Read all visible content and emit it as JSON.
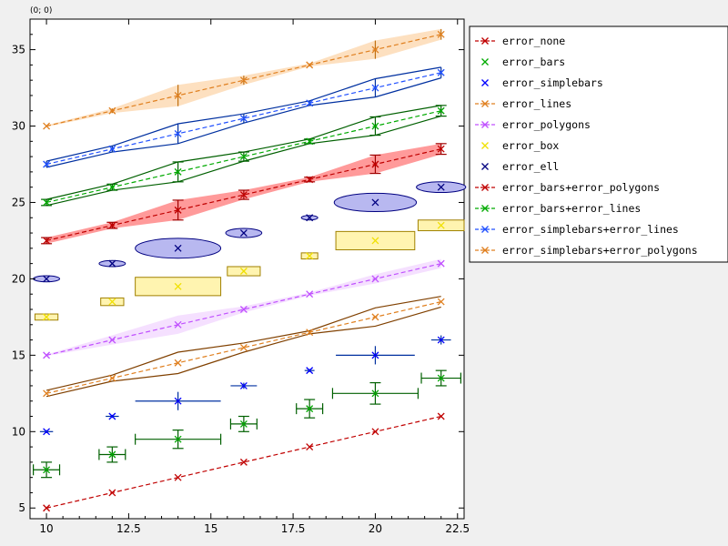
{
  "coordinate_readout": "(0; 0)",
  "chart_data": {
    "type": "line",
    "title": "",
    "xlabel": "",
    "ylabel": "",
    "xlim": [
      9.5,
      22.7
    ],
    "ylim": [
      4.3,
      37
    ],
    "grid": false,
    "legend_position": "top-right",
    "xticks": [
      10,
      12.5,
      15,
      17.5,
      20,
      22.5
    ],
    "xtick_labels": [
      "10",
      "12.5",
      "15",
      "17.5",
      "20",
      "22.5"
    ],
    "yticks": [
      5,
      10,
      15,
      20,
      25,
      30,
      35
    ],
    "ytick_labels": [
      "5",
      "10",
      "15",
      "20",
      "25",
      "30",
      "35"
    ],
    "x": [
      10,
      12,
      14,
      16,
      18,
      20,
      22
    ],
    "series": [
      {
        "name": "error_none",
        "color": "#c00000",
        "line": "dashed",
        "values": [
          5,
          6,
          7,
          8,
          9,
          10,
          11
        ],
        "error_style": "none"
      },
      {
        "name": "error_bars",
        "color": "#00aa00",
        "line": "none",
        "values": [
          7.5,
          8.5,
          9.5,
          10.5,
          11.5,
          12.5,
          13.5
        ],
        "xerr": [
          0.4,
          0.4,
          1.3,
          0.4,
          0.4,
          1.3,
          0.6
        ],
        "yerr": [
          0.5,
          0.5,
          0.6,
          0.5,
          0.6,
          0.7,
          0.5
        ],
        "error_style": "bars",
        "error_color": "#006000"
      },
      {
        "name": "error_simplebars",
        "color": "#0000ff",
        "line": "none",
        "values": [
          10,
          11,
          12,
          13,
          14,
          15,
          16
        ],
        "xerr": [
          0.2,
          0.2,
          1.3,
          0.4,
          0.15,
          1.2,
          0.3
        ],
        "yerr": [
          0.1,
          0.1,
          0.6,
          0.2,
          0.1,
          0.6,
          0.3
        ],
        "error_style": "simplebars",
        "error_color": "#0030a0"
      },
      {
        "name": "error_lines",
        "color": "#e08020",
        "line": "dashed",
        "values": [
          12.5,
          13.5,
          14.5,
          15.5,
          16.5,
          17.5,
          18.5
        ],
        "yerr": [
          0.2,
          0.2,
          0.7,
          0.3,
          0.1,
          0.6,
          0.35
        ],
        "error_style": "lines",
        "error_color": "#804000"
      },
      {
        "name": "error_polygons",
        "color": "#c050ff",
        "line": "dashed",
        "values": [
          15,
          16,
          17,
          18,
          19,
          20,
          21
        ],
        "yerr": [
          0.05,
          0.3,
          0.6,
          0.2,
          0.1,
          0.3,
          0.3
        ],
        "error_style": "polygons",
        "error_fill": "#f5e0ff"
      },
      {
        "name": "error_box",
        "color": "#f0e000",
        "line": "none",
        "values": [
          17.5,
          18.5,
          19.5,
          20.5,
          21.5,
          22.5,
          23.5
        ],
        "xerr": [
          0.35,
          0.35,
          1.3,
          0.5,
          0.25,
          1.2,
          0.7
        ],
        "yerr": [
          0.2,
          0.25,
          0.6,
          0.3,
          0.2,
          0.6,
          0.35
        ],
        "error_style": "box",
        "error_color": "#a08000",
        "error_fill": "#fff4b0"
      },
      {
        "name": "error_ell",
        "color": "#000080",
        "line": "none",
        "values": [
          20,
          21,
          22,
          23,
          24,
          25,
          26
        ],
        "xerr": [
          0.4,
          0.4,
          1.3,
          0.55,
          0.25,
          1.25,
          0.75
        ],
        "yerr": [
          0.2,
          0.2,
          0.65,
          0.3,
          0.15,
          0.6,
          0.35
        ],
        "error_style": "ellipse",
        "error_color": "#000080",
        "error_fill": "#b8b8f0"
      },
      {
        "name": "error_bars+error_polygons",
        "color": "#c00000",
        "line": "dashed",
        "values": [
          22.5,
          23.5,
          24.5,
          25.5,
          26.5,
          27.5,
          28.5
        ],
        "yerr": [
          0.2,
          0.2,
          0.65,
          0.3,
          0.15,
          0.6,
          0.35
        ],
        "xerr": [
          0.4,
          0.4,
          0.5,
          0.4,
          0.3,
          0.5,
          0.4
        ],
        "error_style": "bars+polygons",
        "error_color": "#a00000",
        "error_fill": "#ff9a9a"
      },
      {
        "name": "error_bars+error_lines",
        "color": "#00aa00",
        "line": "dashed",
        "values": [
          25,
          26,
          27,
          28,
          29,
          30,
          31
        ],
        "yerr": [
          0.2,
          0.2,
          0.65,
          0.3,
          0.15,
          0.6,
          0.35
        ],
        "xerr": [
          0.3,
          0.3,
          0.4,
          0.3,
          0.3,
          0.4,
          0.3
        ],
        "error_style": "bars+lines",
        "error_color": "#006000"
      },
      {
        "name": "error_simplebars+error_lines",
        "color": "#2050ff",
        "line": "dashed",
        "values": [
          27.5,
          28.5,
          29.5,
          30.5,
          31.5,
          32.5,
          33.5
        ],
        "yerr": [
          0.2,
          0.2,
          0.65,
          0.3,
          0.15,
          0.6,
          0.35
        ],
        "xerr": [
          0.2,
          0.2,
          0.3,
          0.2,
          0.2,
          0.3,
          0.2
        ],
        "error_style": "simplebars+lines",
        "error_color": "#0030a0"
      },
      {
        "name": "error_simplebars+error_polygons",
        "color": "#e08020",
        "line": "dashed",
        "values": [
          30,
          31,
          32,
          33,
          34,
          35,
          36
        ],
        "yerr": [
          0.05,
          0.15,
          0.7,
          0.3,
          0.1,
          0.6,
          0.35
        ],
        "xerr": [
          0.2,
          0.2,
          0.3,
          0.2,
          0.2,
          0.3,
          0.2
        ],
        "error_style": "simplebars+polygons",
        "error_color": "#c07010",
        "error_fill": "#fde0c0"
      }
    ]
  }
}
